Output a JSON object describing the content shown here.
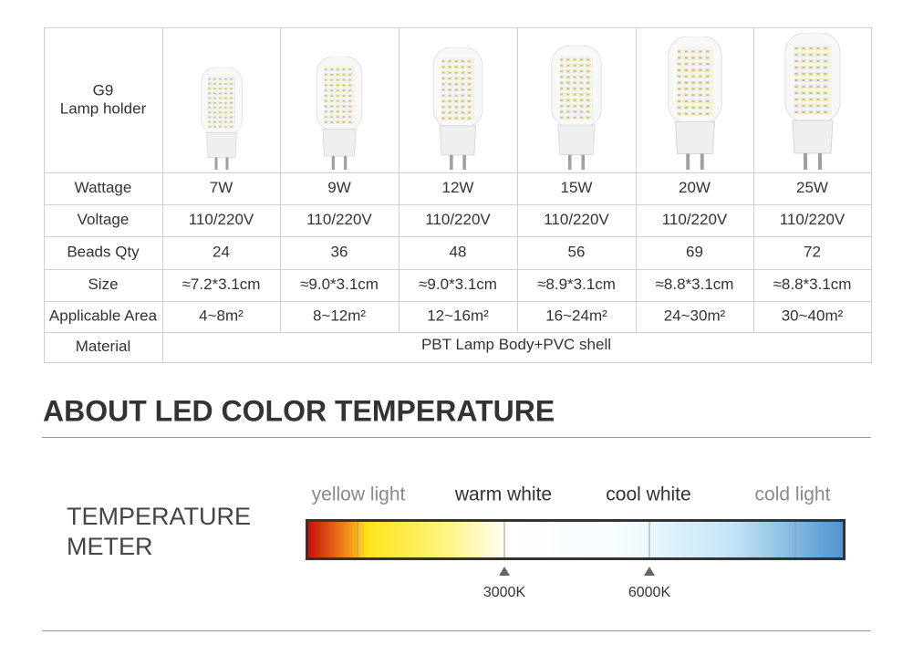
{
  "table": {
    "header_label": [
      "G9",
      "Lamp holder"
    ],
    "rows": [
      [
        "Wattage",
        "7W",
        "9W",
        "12W",
        "15W",
        "20W",
        "25W"
      ],
      [
        "Voltage",
        "110/220V",
        "110/220V",
        "110/220V",
        "110/220V",
        "110/220V",
        "110/220V"
      ],
      [
        "Beads Qty",
        "24",
        "36",
        "48",
        "56",
        "69",
        "72"
      ],
      [
        "Size",
        "≈7.2*3.1cm",
        "≈9.0*3.1cm",
        "≈9.0*3.1cm",
        "≈8.9*3.1cm",
        "≈8.8*3.1cm",
        "≈8.8*3.1cm"
      ],
      [
        "Applicable Area",
        "4~8m²",
        "8~12m²",
        "12~16m²",
        "16~24m²",
        "24~30m²",
        "30~40m²"
      ]
    ],
    "material": [
      "Material",
      "PBT Lamp Body+PVC shell"
    ]
  },
  "section_title": "ABOUT LED COLOR TEMPERATURE",
  "meter": {
    "label": [
      "TEMPERATURE",
      "METER"
    ],
    "zones": [
      "yellow light",
      "warm white",
      "cool white",
      "cold light"
    ],
    "marks": [
      "3000K",
      "6000K"
    ]
  }
}
